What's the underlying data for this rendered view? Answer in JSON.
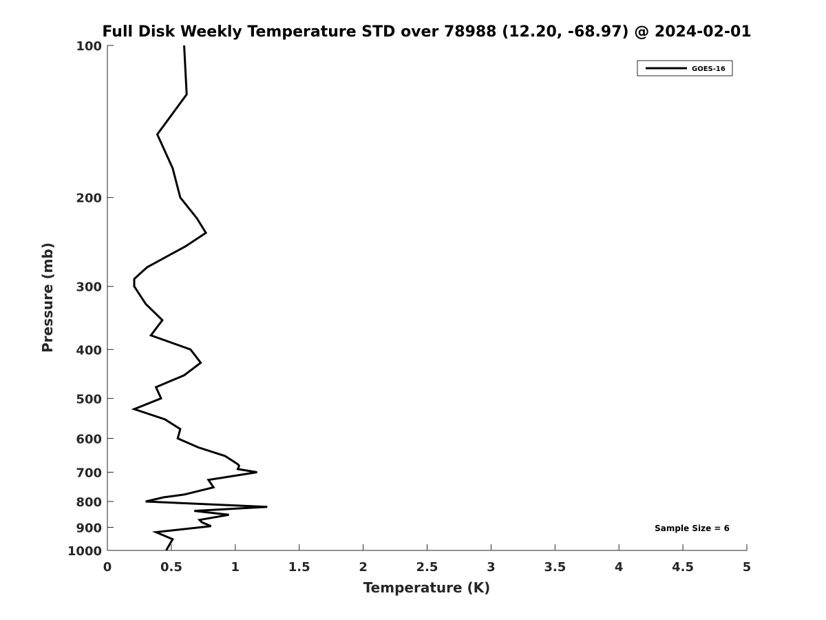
{
  "chart_data": {
    "type": "line",
    "title": "Full Disk Weekly Temperature STD over 78988 (12.20, -68.97) @ 2024-02-01",
    "xlabel": "Temperature (K)",
    "ylabel": "Pressure (mb)",
    "xlim": [
      0,
      5
    ],
    "ylim": [
      100,
      1000
    ],
    "y_scale": "log",
    "y_reversed": true,
    "x_ticks": [
      "0",
      "0.5",
      "1",
      "1.5",
      "2",
      "2.5",
      "3",
      "3.5",
      "4",
      "4.5",
      "5"
    ],
    "y_ticks": [
      "100",
      "200",
      "300",
      "400",
      "500",
      "600",
      "700",
      "800",
      "900",
      "1000"
    ],
    "grid": false,
    "legend_position": "top-right",
    "annotation": "Sample Size = 6",
    "series": [
      {
        "name": "GOES-16",
        "color": "#000000",
        "points": [
          [
            0.6,
            100
          ],
          [
            0.62,
            125
          ],
          [
            0.39,
            150
          ],
          [
            0.51,
            175
          ],
          [
            0.57,
            200
          ],
          [
            0.7,
            220
          ],
          [
            0.77,
            235
          ],
          [
            0.61,
            250
          ],
          [
            0.31,
            275
          ],
          [
            0.21,
            290
          ],
          [
            0.21,
            300
          ],
          [
            0.3,
            325
          ],
          [
            0.43,
            350
          ],
          [
            0.34,
            375
          ],
          [
            0.65,
            400
          ],
          [
            0.73,
            425
          ],
          [
            0.6,
            450
          ],
          [
            0.38,
            475
          ],
          [
            0.42,
            500
          ],
          [
            0.21,
            525
          ],
          [
            0.45,
            550
          ],
          [
            0.57,
            575
          ],
          [
            0.55,
            600
          ],
          [
            0.71,
            625
          ],
          [
            0.92,
            650
          ],
          [
            1.02,
            675
          ],
          [
            1.03,
            680
          ],
          [
            1.02,
            690
          ],
          [
            1.17,
            700
          ],
          [
            0.79,
            725
          ],
          [
            0.83,
            750
          ],
          [
            0.6,
            775
          ],
          [
            0.44,
            785
          ],
          [
            0.3,
            800
          ],
          [
            1.25,
            820
          ],
          [
            0.68,
            835
          ],
          [
            0.95,
            850
          ],
          [
            0.72,
            870
          ],
          [
            0.74,
            880
          ],
          [
            0.81,
            895
          ],
          [
            0.38,
            920
          ],
          [
            0.51,
            950
          ],
          [
            0.47,
            990
          ],
          [
            0.46,
            1000
          ]
        ]
      }
    ]
  }
}
